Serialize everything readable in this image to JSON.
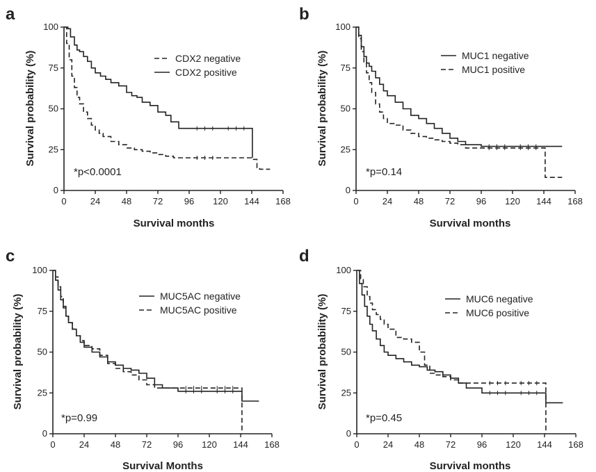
{
  "chart_data": [
    {
      "panel": "a",
      "type": "line",
      "xlabel": "Survival months",
      "ylabel": "Survival probability (%)",
      "xlim": [
        0,
        168
      ],
      "ylim": [
        0,
        100
      ],
      "xticks": [
        "0",
        "24",
        "48",
        "72",
        "96",
        "120",
        "144",
        "168"
      ],
      "yticks": [
        "0",
        "25",
        "50",
        "75",
        "100"
      ],
      "annotation": "*p<0.0001",
      "legend_placement": "top-right",
      "series": [
        {
          "name": "CDX2 negative",
          "style": "dashed",
          "x": [
            0,
            2,
            4,
            6,
            8,
            10,
            12,
            15,
            18,
            21,
            24,
            27,
            30,
            36,
            42,
            48,
            54,
            60,
            66,
            72,
            78,
            84,
            96,
            120,
            144,
            148,
            150,
            158
          ],
          "y": [
            100,
            90,
            80,
            70,
            63,
            57,
            53,
            48,
            44,
            40,
            37,
            35,
            33,
            30,
            28,
            26,
            25,
            24,
            23,
            22,
            21,
            20,
            20,
            20,
            19,
            14,
            13,
            13
          ]
        },
        {
          "name": "CDX2 positive",
          "style": "solid",
          "x": [
            0,
            3,
            5,
            8,
            10,
            12,
            15,
            18,
            21,
            24,
            28,
            32,
            36,
            42,
            48,
            52,
            56,
            60,
            66,
            72,
            78,
            82,
            88,
            96,
            120,
            144,
            144.5
          ],
          "y": [
            100,
            99,
            94,
            89,
            86,
            85,
            82,
            79,
            75,
            72,
            70,
            68,
            66,
            64,
            60,
            58,
            57,
            54,
            52,
            48,
            46,
            42,
            38,
            38,
            38,
            38,
            20
          ]
        }
      ]
    },
    {
      "panel": "b",
      "type": "line",
      "xlabel": "Survival  months",
      "ylabel": "Survival probability (%)",
      "xlim": [
        0,
        168
      ],
      "ylim": [
        0,
        100
      ],
      "xticks": [
        "0",
        "24",
        "48",
        "72",
        "96",
        "120",
        "144",
        "168"
      ],
      "yticks": [
        "0",
        "25",
        "50",
        "75",
        "100"
      ],
      "annotation": "*p=0.14",
      "legend_placement": "top-right",
      "series": [
        {
          "name": "MUC1 negative",
          "style": "solid",
          "x": [
            0,
            2,
            4,
            6,
            8,
            10,
            12,
            15,
            18,
            21,
            24,
            30,
            36,
            42,
            48,
            54,
            60,
            66,
            72,
            78,
            84,
            96,
            120,
            144,
            158
          ],
          "y": [
            100,
            95,
            88,
            82,
            78,
            76,
            73,
            69,
            65,
            61,
            58,
            54,
            50,
            46,
            44,
            41,
            38,
            35,
            32,
            30,
            28,
            27,
            27,
            27,
            27
          ]
        },
        {
          "name": "MUC1 positive",
          "style": "dashed",
          "x": [
            0,
            2,
            4,
            6,
            8,
            10,
            12,
            15,
            18,
            21,
            24,
            30,
            36,
            42,
            48,
            54,
            60,
            66,
            72,
            78,
            84,
            96,
            120,
            144,
            145,
            158
          ],
          "y": [
            100,
            93,
            85,
            78,
            72,
            66,
            60,
            53,
            48,
            44,
            41,
            40,
            37,
            35,
            33,
            32,
            31,
            30,
            29,
            28,
            26,
            26,
            26,
            26,
            8,
            8
          ]
        }
      ]
    },
    {
      "panel": "c",
      "type": "line",
      "xlabel": "Survival Months",
      "ylabel": "Survival probability (%)",
      "xlim": [
        0,
        168
      ],
      "ylim": [
        0,
        100
      ],
      "xticks": [
        "0",
        "24",
        "48",
        "72",
        "96",
        "120",
        "144",
        "168"
      ],
      "yticks": [
        "0",
        "25",
        "50",
        "75",
        "100"
      ],
      "annotation": "*p=0.99",
      "legend_placement": "top-right",
      "series": [
        {
          "name": "MUC5AC negative",
          "style": "solid",
          "x": [
            0,
            2,
            4,
            6,
            8,
            10,
            12,
            15,
            18,
            21,
            24,
            30,
            36,
            42,
            48,
            54,
            60,
            66,
            72,
            78,
            84,
            96,
            120,
            144,
            145,
            158
          ],
          "y": [
            100,
            94,
            88,
            82,
            77,
            72,
            68,
            64,
            60,
            56,
            53,
            50,
            47,
            44,
            42,
            40,
            39,
            37,
            34,
            30,
            28,
            26,
            26,
            26,
            20,
            20
          ]
        },
        {
          "name": "MUC5AC positive",
          "style": "dashed",
          "x": [
            0,
            2,
            4,
            6,
            8,
            10,
            12,
            15,
            18,
            21,
            24,
            30,
            36,
            42,
            48,
            54,
            60,
            66,
            72,
            78,
            84,
            96,
            120,
            144,
            145
          ],
          "y": [
            100,
            96,
            90,
            84,
            78,
            72,
            68,
            64,
            60,
            57,
            54,
            52,
            48,
            43,
            40,
            38,
            36,
            33,
            30,
            28,
            28,
            28,
            28,
            28,
            0
          ]
        }
      ]
    },
    {
      "panel": "d",
      "type": "line",
      "xlabel": "Survival months",
      "ylabel": "Survival probability (%)",
      "xlim": [
        0,
        168
      ],
      "ylim": [
        0,
        100
      ],
      "xticks": [
        "0",
        "24",
        "48",
        "72",
        "96",
        "120",
        "144",
        "168"
      ],
      "yticks": [
        "0",
        "25",
        "50",
        "75",
        "100"
      ],
      "annotation": "*p=0.45",
      "legend_placement": "top-right",
      "series": [
        {
          "name": "MUC6 negative",
          "style": "solid",
          "x": [
            0,
            2,
            4,
            6,
            8,
            10,
            12,
            15,
            18,
            21,
            24,
            30,
            36,
            42,
            48,
            54,
            60,
            66,
            72,
            78,
            84,
            96,
            120,
            144,
            145,
            158
          ],
          "y": [
            100,
            92,
            85,
            78,
            72,
            67,
            63,
            58,
            54,
            50,
            48,
            46,
            44,
            42,
            41,
            39,
            38,
            36,
            34,
            31,
            28,
            25,
            25,
            25,
            19,
            19
          ]
        },
        {
          "name": "MUC6 positive",
          "style": "dashed",
          "x": [
            0,
            3,
            5,
            8,
            10,
            12,
            15,
            18,
            21,
            24,
            30,
            36,
            42,
            48,
            52,
            56,
            60,
            66,
            72,
            78,
            96,
            120,
            144,
            145
          ],
          "y": [
            100,
            95,
            90,
            84,
            80,
            76,
            73,
            70,
            67,
            64,
            59,
            58,
            56,
            50,
            42,
            37,
            36,
            35,
            33,
            31,
            31,
            31,
            31,
            0
          ]
        }
      ]
    }
  ]
}
